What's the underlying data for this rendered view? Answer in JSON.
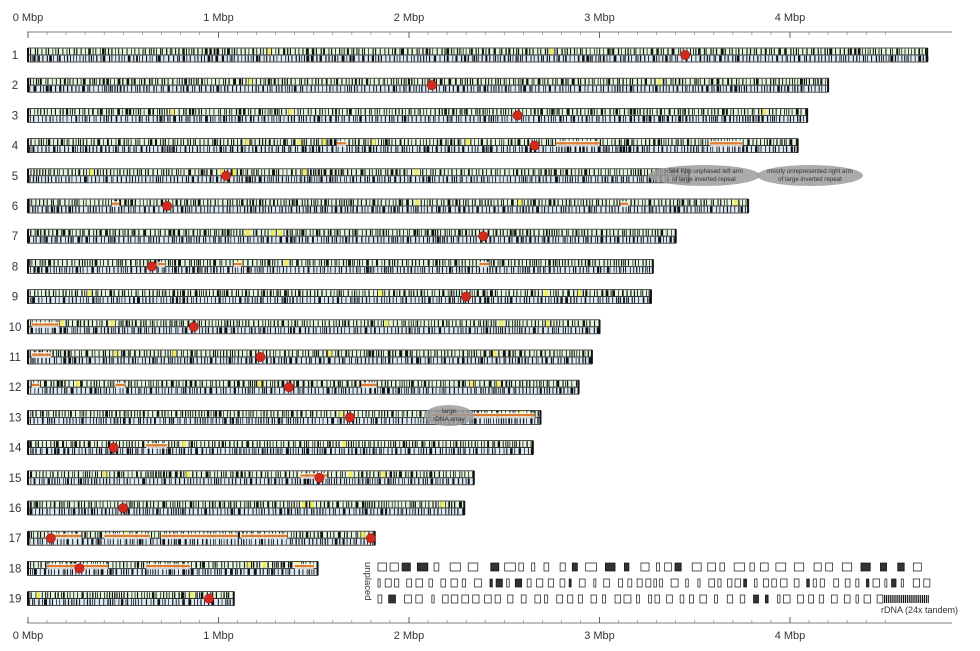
{
  "axis": {
    "min": 0,
    "max": 4.5,
    "ticks": [
      {
        "value": 0,
        "label": "0 Mbp"
      },
      {
        "value": 1,
        "label": "1 Mbp"
      },
      {
        "value": 2,
        "label": "2 Mbp"
      },
      {
        "value": 3,
        "label": "3 Mbp"
      },
      {
        "value": 4,
        "label": "4 Mbp"
      }
    ]
  },
  "chromosomes": [
    {
      "label": "1",
      "length": 4.72,
      "centromere": 3.45
    },
    {
      "label": "2",
      "length": 4.2,
      "centromere": 2.12
    },
    {
      "label": "3",
      "length": 4.09,
      "centromere": 2.57
    },
    {
      "label": "4",
      "length": 4.04,
      "centromere": 2.66,
      "segments": [
        {
          "start": 1.62,
          "end": 1.67
        },
        {
          "start": 2.77,
          "end": 3.0
        },
        {
          "start": 3.58,
          "end": 3.75
        }
      ]
    },
    {
      "label": "5",
      "length": 3.47,
      "centromere": 1.04
    },
    {
      "label": "6",
      "length": 3.78,
      "centromere": 0.73,
      "segments": [
        {
          "start": 0.44,
          "end": 0.48
        },
        {
          "start": 3.11,
          "end": 3.15
        }
      ]
    },
    {
      "label": "7",
      "length": 3.4,
      "centromere": 2.39
    },
    {
      "label": "8",
      "length": 3.28,
      "centromere": 0.65,
      "segments": [
        {
          "start": 0.68,
          "end": 0.72
        },
        {
          "start": 1.08,
          "end": 1.12
        },
        {
          "start": 2.37,
          "end": 2.42
        }
      ]
    },
    {
      "label": "9",
      "length": 3.27,
      "centromere": 2.3
    },
    {
      "label": "10",
      "length": 3.0,
      "centromere": 0.87,
      "segments": [
        {
          "start": 0.02,
          "end": 0.16
        }
      ]
    },
    {
      "label": "11",
      "length": 2.96,
      "centromere": 1.22,
      "segments": [
        {
          "start": 0.02,
          "end": 0.12
        }
      ]
    },
    {
      "label": "12",
      "length": 2.89,
      "centromere": 1.37,
      "segments": [
        {
          "start": 0.02,
          "end": 0.06
        },
        {
          "start": 0.46,
          "end": 0.51
        },
        {
          "start": 1.75,
          "end": 1.83
        }
      ]
    },
    {
      "label": "13",
      "length": 2.69,
      "centromere": 1.69,
      "segments": [
        {
          "start": 2.12,
          "end": 2.66
        }
      ]
    },
    {
      "label": "14",
      "length": 2.65,
      "centromere": 0.45,
      "segments": [
        {
          "start": 0.62,
          "end": 0.73
        }
      ]
    },
    {
      "label": "15",
      "length": 2.34,
      "centromere": 1.53,
      "segments": [
        {
          "start": 1.43,
          "end": 1.57
        }
      ]
    },
    {
      "label": "16",
      "length": 2.29,
      "centromere": 0.5
    },
    {
      "label": "17",
      "length": 1.82,
      "centromere": 0.12,
      "centromere2": 1.8,
      "segments": [
        {
          "start": 0.1,
          "end": 0.28
        },
        {
          "start": 0.4,
          "end": 0.64
        },
        {
          "start": 0.7,
          "end": 1.1
        },
        {
          "start": 1.12,
          "end": 1.36
        }
      ]
    },
    {
      "label": "18",
      "length": 1.52,
      "centromere": 0.27,
      "segments": [
        {
          "start": 0.1,
          "end": 0.42
        },
        {
          "start": 0.62,
          "end": 0.85
        },
        {
          "start": 1.4,
          "end": 1.5
        }
      ]
    },
    {
      "label": "19",
      "length": 1.08,
      "centromere": 0.95
    }
  ],
  "annotations": {
    "chr5_left": [
      "~564 Kbp unphased left arm",
      "of large inverted repeat"
    ],
    "chr5_right": [
      "mostly unrepresented right arm",
      "of large inverted repeat"
    ],
    "chr13": [
      "large",
      "rDNA array"
    ]
  },
  "unplaced": {
    "label": "unplaced",
    "rows": 3,
    "rdna_label": "rDNA (24x tandem)"
  },
  "colors": {
    "fill": "#e4f6de",
    "lower_fill": "#dceaf6",
    "outline": "#222222",
    "centromere": "#d32a1e",
    "segment": "#e07c2c",
    "yellow_mark": "#f1ec58",
    "ellipse": "#9c9c9c"
  }
}
